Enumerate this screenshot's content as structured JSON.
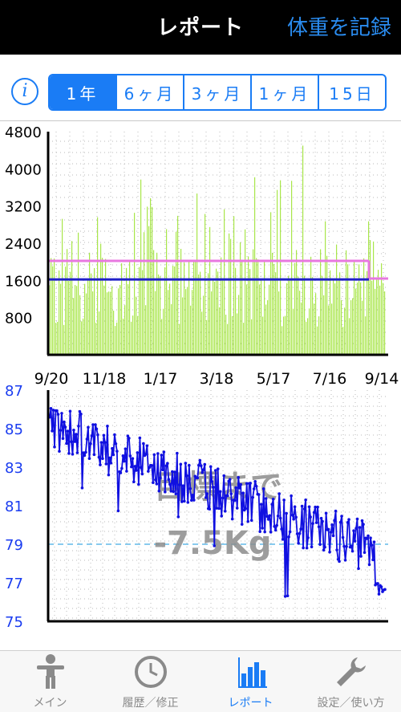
{
  "header": {
    "title": "レポート",
    "action_label": "体重を記録"
  },
  "info_icon": "info-icon",
  "period_tabs": [
    {
      "label": "1年",
      "active": true
    },
    {
      "label": "6ヶ月",
      "active": false
    },
    {
      "label": "3ヶ月",
      "active": false
    },
    {
      "label": "1ヶ月",
      "active": false
    },
    {
      "label": "15日",
      "active": false
    }
  ],
  "calorie_chart": {
    "type": "bar",
    "yticks": [
      "4800",
      "4000",
      "3200",
      "2400",
      "1600",
      "800"
    ],
    "ylim": [
      0,
      4800
    ],
    "xticks": [
      "9/20",
      "11/18",
      "1/17",
      "3/18",
      "5/17",
      "7/16",
      "9/14"
    ],
    "bar_color": "#a8e64a",
    "pink_line": {
      "color": "#e878e0",
      "before": 2020,
      "after": 1640
    },
    "blue_line": {
      "color": "#2020c8",
      "value": 1620
    }
  },
  "weight_chart": {
    "type": "line",
    "yticks": [
      "87",
      "85",
      "83",
      "81",
      "79",
      "77",
      "75"
    ],
    "ylim": [
      75,
      87
    ],
    "target_value": 79,
    "target_color": "#60b8e8",
    "line_color": "#1010e0",
    "overlay_line1": "目標まで",
    "overlay_line2": "-7.5Kg"
  },
  "tabbar": [
    {
      "label": "メイン",
      "icon": "person-icon",
      "active": false
    },
    {
      "label": "履歴／修正",
      "icon": "clock-icon",
      "active": false
    },
    {
      "label": "レポート",
      "icon": "bar-chart-icon",
      "active": true
    },
    {
      "label": "設定／使い方",
      "icon": "wrench-icon",
      "active": false
    }
  ]
}
